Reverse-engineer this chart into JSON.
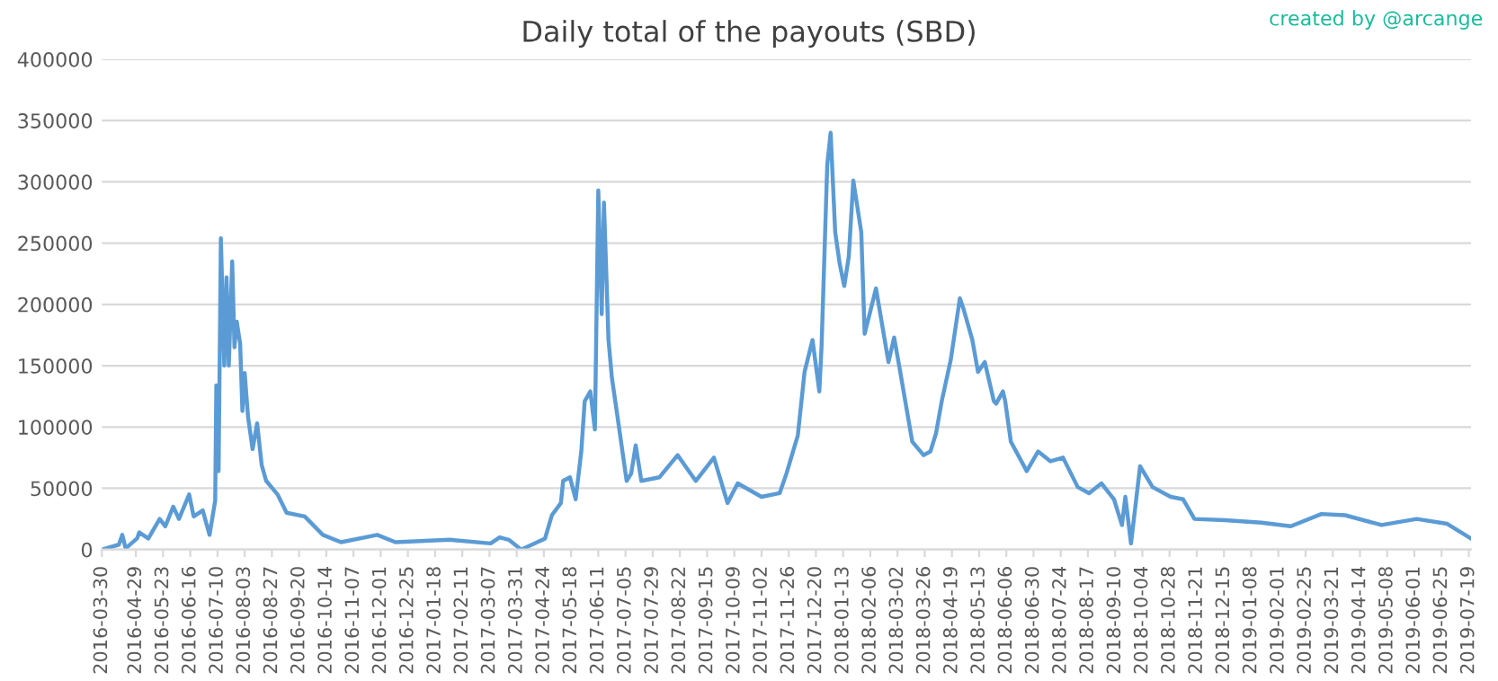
{
  "chart_data": {
    "type": "line",
    "title": "Daily total of the payouts (SBD)",
    "annotations": [
      "created by @arcange"
    ],
    "x": [
      "2016-03-30",
      "2016-04-14",
      "2016-04-17",
      "2016-04-20",
      "2016-04-30",
      "2016-05-02",
      "2016-05-10",
      "2016-05-20",
      "2016-05-25",
      "2016-06-01",
      "2016-06-06",
      "2016-06-15",
      "2016-06-19",
      "2016-06-27",
      "2016-07-03",
      "2016-07-08",
      "2016-07-09",
      "2016-07-11",
      "2016-07-13",
      "2016-07-16",
      "2016-07-18",
      "2016-07-20",
      "2016-07-23",
      "2016-07-25",
      "2016-07-27",
      "2016-07-30",
      "2016-08-01",
      "2016-08-03",
      "2016-08-06",
      "2016-08-10",
      "2016-08-14",
      "2016-08-18",
      "2016-08-22",
      "2016-09-01",
      "2016-09-09",
      "2016-09-25",
      "2016-10-11",
      "2016-10-27",
      "2016-11-28",
      "2016-12-14",
      "2017-01-31",
      "2017-03-08",
      "2017-03-16",
      "2017-03-24",
      "2017-04-04",
      "2017-04-25",
      "2017-05-01",
      "2017-05-09",
      "2017-05-11",
      "2017-05-17",
      "2017-05-22",
      "2017-05-27",
      "2017-05-30",
      "2017-06-04",
      "2017-06-08",
      "2017-06-11",
      "2017-06-14",
      "2017-06-16",
      "2017-06-20",
      "2017-06-23",
      "2017-06-28",
      "2017-07-06",
      "2017-07-10",
      "2017-07-14",
      "2017-07-19",
      "2017-08-04",
      "2017-08-20",
      "2017-09-05",
      "2017-09-21",
      "2017-10-03",
      "2017-10-12",
      "2017-11-02",
      "2017-11-18",
      "2017-11-24",
      "2017-12-04",
      "2017-12-10",
      "2017-12-17",
      "2017-12-23",
      "2017-12-25",
      "2017-12-30",
      "2018-01-02",
      "2018-01-06",
      "2018-01-10",
      "2018-01-14",
      "2018-01-18",
      "2018-01-22",
      "2018-01-29",
      "2018-02-01",
      "2018-02-11",
      "2018-02-22",
      "2018-02-27",
      "2018-03-04",
      "2018-03-15",
      "2018-03-25",
      "2018-03-31",
      "2018-04-05",
      "2018-04-10",
      "2018-04-18",
      "2018-04-26",
      "2018-04-29",
      "2018-05-07",
      "2018-05-12",
      "2018-05-18",
      "2018-05-26",
      "2018-05-28",
      "2018-06-03",
      "2018-06-05",
      "2018-06-10",
      "2018-06-24",
      "2018-07-04",
      "2018-07-15",
      "2018-07-26",
      "2018-08-08",
      "2018-08-18",
      "2018-08-29",
      "2018-09-09",
      "2018-09-16",
      "2018-09-19",
      "2018-09-24",
      "2018-10-02",
      "2018-10-13",
      "2018-10-29",
      "2018-11-09",
      "2018-11-19",
      "2018-12-16",
      "2019-01-17",
      "2019-02-12",
      "2019-03-11",
      "2019-04-01",
      "2019-05-03",
      "2019-06-03",
      "2019-06-30",
      "2019-07-21"
    ],
    "series": [
      {
        "color": "#5b9bd5",
        "values": [
          0,
          4000,
          12000,
          1000,
          9000,
          14000,
          9000,
          25000,
          19000,
          35000,
          25000,
          45000,
          27000,
          32000,
          12000,
          40000,
          134000,
          64000,
          254000,
          150000,
          222000,
          150000,
          235000,
          165000,
          186000,
          168000,
          113000,
          144000,
          108000,
          82000,
          103000,
          69000,
          56000,
          45000,
          30000,
          27000,
          12000,
          6000,
          12000,
          6000,
          8000,
          5000,
          10000,
          8000,
          0,
          9000,
          28000,
          38000,
          56000,
          59000,
          41000,
          80000,
          121000,
          129000,
          98000,
          293000,
          192000,
          283000,
          171000,
          140000,
          108000,
          56000,
          62000,
          85000,
          56000,
          59000,
          77000,
          56000,
          75000,
          38000,
          54000,
          43000,
          46000,
          62000,
          93000,
          145000,
          171000,
          129000,
          166000,
          314000,
          340000,
          259000,
          233000,
          215000,
          239000,
          301000,
          259000,
          176000,
          213000,
          153000,
          173000,
          147000,
          88000,
          77000,
          80000,
          95000,
          121000,
          155000,
          205000,
          197000,
          171000,
          145000,
          153000,
          121000,
          119000,
          129000,
          121000,
          88000,
          64000,
          80000,
          72000,
          75000,
          51000,
          46000,
          54000,
          41000,
          20000,
          43000,
          5000,
          68000,
          51000,
          43000,
          41000,
          25000,
          24000,
          22000,
          19000,
          29000,
          28000,
          20000,
          25000,
          21000,
          9000
        ]
      }
    ],
    "xlim": [
      "2016-03-30",
      "2019-07-21"
    ],
    "xticks": [
      "2016-03-30",
      "2016-04-29",
      "2016-05-23",
      "2016-06-16",
      "2016-07-10",
      "2016-08-03",
      "2016-08-27",
      "2016-09-20",
      "2016-10-14",
      "2016-11-07",
      "2016-12-01",
      "2016-12-25",
      "2017-01-18",
      "2017-02-11",
      "2017-03-07",
      "2017-03-31",
      "2017-04-24",
      "2017-05-18",
      "2017-06-11",
      "2017-07-05",
      "2017-07-29",
      "2017-08-22",
      "2017-09-15",
      "2017-10-09",
      "2017-11-02",
      "2017-11-26",
      "2017-12-20",
      "2018-01-13",
      "2018-02-06",
      "2018-03-02",
      "2018-03-26",
      "2018-04-19",
      "2018-05-13",
      "2018-06-06",
      "2018-06-30",
      "2018-07-24",
      "2018-08-17",
      "2018-09-10",
      "2018-10-04",
      "2018-10-28",
      "2018-11-21",
      "2018-12-15",
      "2019-01-08",
      "2019-02-01",
      "2019-02-25",
      "2019-03-21",
      "2019-04-14",
      "2019-05-08",
      "2019-06-01",
      "2019-06-25",
      "2019-07-19"
    ],
    "ylim": [
      0,
      400000
    ],
    "yticks": [
      0,
      50000,
      100000,
      150000,
      200000,
      250000,
      300000,
      350000,
      400000
    ],
    "grid": "y",
    "marker": "none",
    "line_style": "solid"
  }
}
